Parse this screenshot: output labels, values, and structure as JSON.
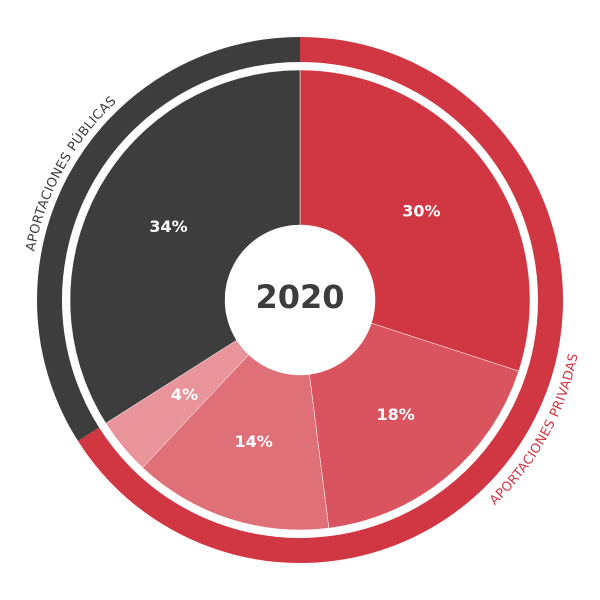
{
  "chart_data": {
    "type": "donut",
    "center_label": "2020",
    "categories": [
      null,
      null,
      null,
      null,
      null
    ],
    "values": [
      30,
      18,
      14,
      4,
      34
    ],
    "value_labels": [
      "30%",
      "18%",
      "14%",
      "4%",
      "34%"
    ],
    "colors": [
      "#d03743",
      "#d9545e",
      "#e07078",
      "#e8949a",
      "#3d3d3d"
    ],
    "ring": [
      {
        "name": "APORTACIONES PRIVADAS",
        "color": "#d03743",
        "value": 66
      },
      {
        "name": "APORTACIONES PÚBLICAS",
        "color": "#3d3d3d",
        "value": 34
      }
    ]
  }
}
